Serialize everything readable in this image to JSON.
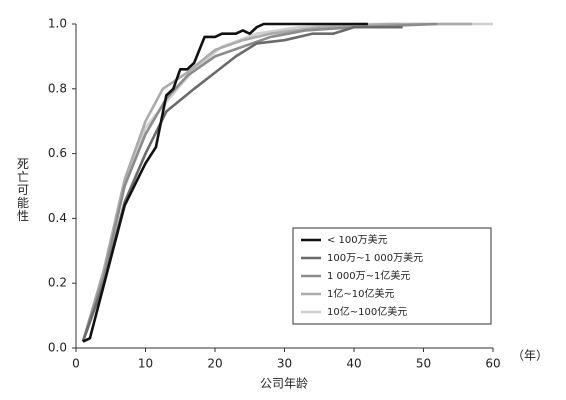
{
  "chart_data": {
    "type": "line",
    "xlabel": "公司年龄",
    "x_unit": "（年）",
    "ylabel": "死亡可能性",
    "xlim": [
      0,
      60
    ],
    "xticks": [
      0,
      10,
      20,
      30,
      40,
      50,
      60
    ],
    "ylim": [
      0,
      1
    ],
    "yticks": [
      {
        "value": 0,
        "label": "0.0"
      },
      0.2,
      0.4,
      0.6,
      0.8,
      {
        "value": 1,
        "label": "1.0"
      }
    ],
    "legend": "lower right",
    "series": [
      {
        "name": "< 100万美元",
        "color": "#111111",
        "x": [
          1,
          2,
          7,
          10,
          11.5,
          13,
          14,
          15,
          16,
          17,
          18.5,
          20,
          21,
          23,
          24,
          25,
          26,
          27,
          42
        ],
        "values": [
          0.02,
          0.03,
          0.44,
          0.57,
          0.62,
          0.78,
          0.8,
          0.86,
          0.86,
          0.88,
          0.96,
          0.96,
          0.97,
          0.97,
          0.98,
          0.97,
          0.99,
          1.0,
          1.0
        ]
      },
      {
        "name": "100万~1 000万美元",
        "color": "#6a6a6a",
        "x": [
          1,
          4,
          7,
          10,
          13,
          17,
          20,
          23,
          26,
          30,
          34,
          37,
          40,
          47
        ],
        "values": [
          0.02,
          0.2,
          0.45,
          0.6,
          0.73,
          0.8,
          0.85,
          0.9,
          0.94,
          0.95,
          0.97,
          0.97,
          0.99,
          0.99
        ]
      },
      {
        "name": "1 000万~1亿美元",
        "color": "#8c8c8c",
        "x": [
          1,
          4,
          7,
          10,
          13,
          16,
          20,
          24,
          28,
          33,
          40,
          52
        ],
        "values": [
          0.02,
          0.22,
          0.5,
          0.66,
          0.77,
          0.84,
          0.9,
          0.93,
          0.96,
          0.98,
          0.99,
          1.0
        ]
      },
      {
        "name": "1亿~10亿美元",
        "color": "#ababab",
        "x": [
          1,
          4,
          7,
          10,
          12.5,
          16,
          20,
          24,
          28,
          35,
          45,
          57
        ],
        "values": [
          0.02,
          0.24,
          0.52,
          0.7,
          0.8,
          0.85,
          0.92,
          0.95,
          0.97,
          0.99,
          1.0,
          1.0
        ]
      },
      {
        "name": "10亿~100亿美元",
        "color": "#cfcfcf",
        "x": [
          1,
          4,
          7,
          10,
          13,
          17,
          21,
          26,
          32,
          40,
          60
        ],
        "values": [
          0.02,
          0.24,
          0.5,
          0.68,
          0.76,
          0.86,
          0.93,
          0.97,
          0.99,
          1.0,
          1.0
        ]
      }
    ]
  }
}
